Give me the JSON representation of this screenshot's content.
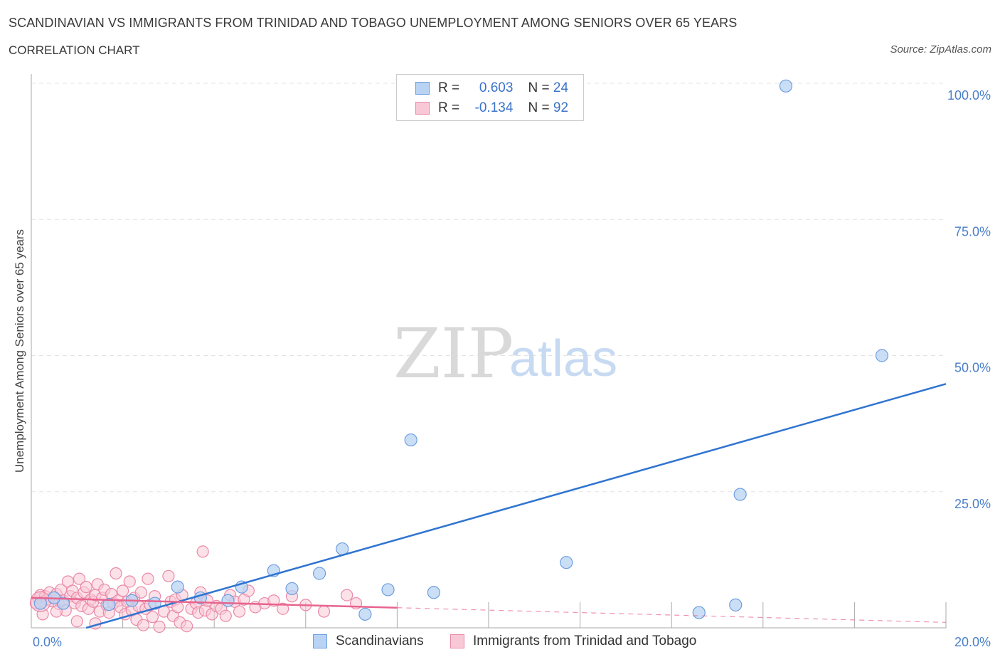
{
  "header": {
    "title": "SCANDINAVIAN VS IMMIGRANTS FROM TRINIDAD AND TOBAGO UNEMPLOYMENT AMONG SENIORS OVER 65 YEARS",
    "subtitle": "CORRELATION CHART",
    "source": "Source: ZipAtlas.com"
  },
  "watermark": {
    "zip": "ZIP",
    "atlas": "atlas"
  },
  "legend": {
    "rows": [
      {
        "r_label": "R =",
        "r_value": "0.603",
        "n_label": "N =",
        "n_value": "24"
      },
      {
        "r_label": "R =",
        "r_value": "-0.134",
        "n_label": "N =",
        "n_value": "92"
      }
    ]
  },
  "bottom_legend": {
    "series1": "Scandinavians",
    "series2": "Immigrants from Trinidad and Tobago"
  },
  "colors": {
    "blue_fill": "#b8d3f3",
    "blue_stroke": "#6d9ee0",
    "blue_line": "#2f74d0",
    "pink_fill": "#f9c8d6",
    "pink_stroke": "#ea8aa8",
    "pink_line": "#e8648f",
    "grid": "#e3e3e3"
  },
  "chart_data": {
    "type": "scatter",
    "title": "SCANDINAVIAN VS IMMIGRANTS FROM TRINIDAD AND TOBAGO UNEMPLOYMENT AMONG SENIORS OVER 65 YEARS",
    "xlabel": "",
    "ylabel": "Unemployment Among Seniors over 65 years",
    "xlim": [
      0,
      20
    ],
    "ylim": [
      0,
      100
    ],
    "x_tick_labels": [
      "0.0%",
      "20.0%"
    ],
    "y_ticks": [
      25,
      50,
      75,
      100
    ],
    "y_tick_labels": [
      "25.0%",
      "50.0%",
      "75.0%",
      "100.0%"
    ],
    "series": [
      {
        "name": "Scandinavians",
        "points": [
          [
            0.2,
            4.5
          ],
          [
            0.7,
            4.5
          ],
          [
            1.7,
            4.3
          ],
          [
            2.2,
            5.0
          ],
          [
            2.7,
            4.5
          ],
          [
            3.2,
            7.5
          ],
          [
            3.7,
            5.5
          ],
          [
            4.3,
            5.0
          ],
          [
            4.6,
            7.5
          ],
          [
            5.3,
            10.5
          ],
          [
            5.7,
            7.2
          ],
          [
            6.3,
            10.0
          ],
          [
            6.8,
            14.5
          ],
          [
            7.3,
            2.5
          ],
          [
            7.8,
            7.0
          ],
          [
            8.3,
            34.5
          ],
          [
            8.8,
            6.5
          ],
          [
            11.7,
            12.0
          ],
          [
            14.6,
            2.8
          ],
          [
            15.4,
            4.2
          ],
          [
            15.5,
            24.5
          ],
          [
            16.5,
            99.5
          ],
          [
            18.6,
            50.0
          ],
          [
            0.5,
            5.5
          ]
        ],
        "trend": {
          "x": [
            1.2,
            20.0
          ],
          "y": [
            0.0,
            44.8
          ]
        }
      },
      {
        "name": "Immigrants from Trinidad and Tobago",
        "points": [
          [
            0.1,
            4.5
          ],
          [
            0.15,
            5.5
          ],
          [
            0.2,
            6.0
          ],
          [
            0.25,
            4.8
          ],
          [
            0.3,
            5.8
          ],
          [
            0.35,
            5.2
          ],
          [
            0.4,
            6.5
          ],
          [
            0.45,
            4.9
          ],
          [
            0.5,
            5.6
          ],
          [
            0.55,
            6.2
          ],
          [
            0.6,
            4.4
          ],
          [
            0.65,
            7.0
          ],
          [
            0.7,
            5.0
          ],
          [
            0.75,
            3.2
          ],
          [
            0.8,
            8.5
          ],
          [
            0.85,
            5.8
          ],
          [
            0.9,
            6.8
          ],
          [
            0.95,
            4.5
          ],
          [
            1.0,
            5.5
          ],
          [
            1.05,
            9.0
          ],
          [
            1.1,
            4.0
          ],
          [
            1.15,
            6.5
          ],
          [
            1.2,
            7.5
          ],
          [
            1.25,
            3.5
          ],
          [
            1.3,
            5.2
          ],
          [
            1.35,
            4.8
          ],
          [
            1.4,
            6.0
          ],
          [
            1.45,
            8.0
          ],
          [
            1.5,
            3.0
          ],
          [
            1.55,
            5.5
          ],
          [
            1.6,
            7.0
          ],
          [
            1.65,
            4.2
          ],
          [
            1.7,
            2.8
          ],
          [
            1.75,
            6.2
          ],
          [
            1.8,
            4.5
          ],
          [
            1.85,
            10.0
          ],
          [
            1.9,
            5.0
          ],
          [
            1.95,
            3.8
          ],
          [
            2.0,
            6.8
          ],
          [
            2.05,
            2.5
          ],
          [
            2.1,
            4.8
          ],
          [
            2.15,
            8.5
          ],
          [
            2.2,
            3.2
          ],
          [
            2.25,
            5.5
          ],
          [
            2.3,
            1.5
          ],
          [
            2.35,
            4.0
          ],
          [
            2.4,
            6.5
          ],
          [
            2.45,
            0.5
          ],
          [
            2.5,
            3.5
          ],
          [
            2.55,
            9.0
          ],
          [
            2.6,
            4.2
          ],
          [
            2.65,
            2.0
          ],
          [
            2.7,
            5.8
          ],
          [
            2.8,
            0.2
          ],
          [
            2.9,
            3.0
          ],
          [
            3.0,
            9.5
          ],
          [
            3.05,
            4.8
          ],
          [
            3.1,
            2.2
          ],
          [
            3.15,
            5.2
          ],
          [
            3.2,
            3.8
          ],
          [
            3.25,
            1.0
          ],
          [
            3.3,
            6.0
          ],
          [
            3.4,
            0.3
          ],
          [
            3.5,
            3.5
          ],
          [
            3.6,
            4.5
          ],
          [
            3.65,
            2.8
          ],
          [
            3.7,
            6.5
          ],
          [
            3.75,
            14.0
          ],
          [
            3.8,
            3.2
          ],
          [
            3.85,
            5.0
          ],
          [
            3.95,
            2.5
          ],
          [
            4.05,
            4.0
          ],
          [
            4.15,
            3.5
          ],
          [
            4.25,
            2.2
          ],
          [
            4.35,
            6.0
          ],
          [
            4.45,
            4.8
          ],
          [
            4.55,
            3.0
          ],
          [
            4.65,
            5.2
          ],
          [
            4.75,
            6.8
          ],
          [
            4.9,
            3.8
          ],
          [
            5.1,
            4.5
          ],
          [
            5.3,
            5.0
          ],
          [
            5.5,
            3.5
          ],
          [
            5.7,
            5.8
          ],
          [
            6.0,
            4.2
          ],
          [
            6.4,
            3.0
          ],
          [
            6.9,
            6.0
          ],
          [
            7.1,
            4.5
          ],
          [
            0.25,
            2.5
          ],
          [
            0.55,
            3.0
          ],
          [
            1.0,
            1.2
          ],
          [
            1.4,
            0.8
          ]
        ],
        "trend": {
          "x": [
            0.0,
            8.0
          ],
          "y": [
            5.5,
            3.7
          ]
        },
        "trend_extension": {
          "x": [
            8.0,
            20.0
          ],
          "y": [
            3.7,
            1.0
          ]
        }
      }
    ],
    "grid": true,
    "legend_position": "top-center"
  }
}
